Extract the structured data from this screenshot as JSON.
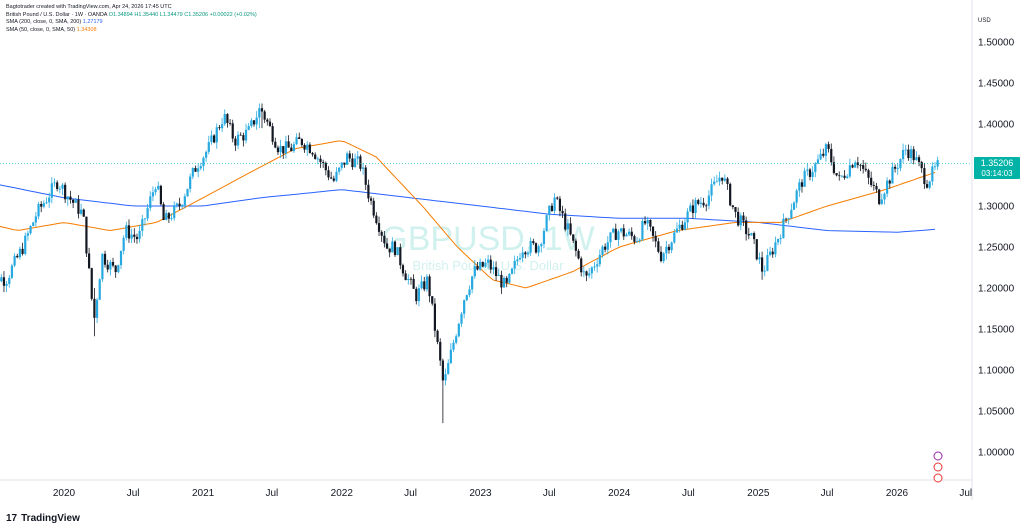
{
  "header": {
    "created_by": "Bagtotrader created with TradingView.com, Apr 24, 2026 17:45 UTC",
    "title": "British Pound / U.S. Dollar · 1W · OANDA",
    "ohlc": "O1.34894 H1.35440 L1.34479 C1.35206 +0.00022 (+0.02%)",
    "sma200_label": "SMA (200, close, 0, SMA, 200)",
    "sma200_value": "1.27179",
    "sma50_label": "SMA (50, close, 0, SMA, 50)",
    "sma50_value": "1.34308"
  },
  "watermark": {
    "symbol": "GBPUSD, 1W",
    "subtitle": "British Pound / U.S. Dollar"
  },
  "price_tag": {
    "price": "1.35206",
    "countdown": "03:14:03"
  },
  "brand": {
    "name": "TradingView"
  },
  "colors": {
    "up": "#26a9e0",
    "down": "#131722",
    "sma50": "#f57c00",
    "sma200": "#2962ff",
    "tag": "#00b3a6"
  },
  "chart_data": {
    "type": "candlestick",
    "y_unit": "USD",
    "ylim": [
      0.97,
      1.53
    ],
    "y_ticks": [
      "1.00000",
      "1.05000",
      "1.10000",
      "1.15000",
      "1.20000",
      "1.25000",
      "1.30000",
      "1.35000",
      "1.40000",
      "1.45000",
      "1.50000"
    ],
    "x_ticks": [
      "2020",
      "Jul",
      "2021",
      "Jul",
      "2022",
      "Jul",
      "2023",
      "Jul",
      "2024",
      "Jul",
      "2025",
      "Jul",
      "2026",
      "Jul"
    ],
    "x_tick_dates": [
      "2020-01-01",
      "2020-07-01",
      "2021-01-01",
      "2021-07-01",
      "2022-01-01",
      "2022-07-01",
      "2023-01-01",
      "2023-07-01",
      "2024-01-01",
      "2024-07-01",
      "2025-01-01",
      "2025-07-01",
      "2026-01-01",
      "2026-07-01"
    ],
    "close_path": [
      [
        "2019-06-01",
        1.22
      ],
      [
        "2019-08-01",
        1.21
      ],
      [
        "2019-09-15",
        1.25
      ],
      [
        "2019-10-20",
        1.29
      ],
      [
        "2019-12-15",
        1.33
      ],
      [
        "2020-01-15",
        1.31
      ],
      [
        "2020-02-20",
        1.29
      ],
      [
        "2020-03-20",
        1.16
      ],
      [
        "2020-04-10",
        1.24
      ],
      [
        "2020-05-15",
        1.22
      ],
      [
        "2020-06-10",
        1.27
      ],
      [
        "2020-07-15",
        1.26
      ],
      [
        "2020-08-30",
        1.33
      ],
      [
        "2020-09-20",
        1.28
      ],
      [
        "2020-10-30",
        1.3
      ],
      [
        "2020-12-15",
        1.35
      ],
      [
        "2021-01-15",
        1.37
      ],
      [
        "2021-02-24",
        1.41
      ],
      [
        "2021-03-25",
        1.38
      ],
      [
        "2021-04-30",
        1.39
      ],
      [
        "2021-06-01",
        1.42
      ],
      [
        "2021-07-20",
        1.37
      ],
      [
        "2021-08-20",
        1.37
      ],
      [
        "2021-09-15",
        1.38
      ],
      [
        "2021-10-15",
        1.37
      ],
      [
        "2021-12-10",
        1.33
      ],
      [
        "2022-01-15",
        1.36
      ],
      [
        "2022-02-20",
        1.35
      ],
      [
        "2022-03-15",
        1.31
      ],
      [
        "2022-04-30",
        1.25
      ],
      [
        "2022-05-20",
        1.25
      ],
      [
        "2022-06-15",
        1.22
      ],
      [
        "2022-07-15",
        1.19
      ],
      [
        "2022-08-15",
        1.21
      ],
      [
        "2022-09-26",
        1.08
      ],
      [
        "2022-10-20",
        1.13
      ],
      [
        "2022-11-20",
        1.19
      ],
      [
        "2022-12-15",
        1.22
      ],
      [
        "2023-01-20",
        1.23
      ],
      [
        "2023-03-10",
        1.2
      ],
      [
        "2023-04-20",
        1.25
      ],
      [
        "2023-06-01",
        1.25
      ],
      [
        "2023-07-14",
        1.31
      ],
      [
        "2023-08-20",
        1.27
      ],
      [
        "2023-10-05",
        1.21
      ],
      [
        "2023-11-20",
        1.25
      ],
      [
        "2023-12-28",
        1.27
      ],
      [
        "2024-02-15",
        1.26
      ],
      [
        "2024-03-10",
        1.28
      ],
      [
        "2024-04-20",
        1.24
      ],
      [
        "2024-06-01",
        1.27
      ],
      [
        "2024-07-15",
        1.3
      ],
      [
        "2024-08-20",
        1.31
      ],
      [
        "2024-09-27",
        1.34
      ],
      [
        "2024-11-01",
        1.29
      ],
      [
        "2024-12-15",
        1.26
      ],
      [
        "2025-01-13",
        1.22
      ],
      [
        "2025-02-20",
        1.26
      ],
      [
        "2025-03-20",
        1.29
      ],
      [
        "2025-04-25",
        1.33
      ],
      [
        "2025-06-01",
        1.35
      ],
      [
        "2025-07-01",
        1.37
      ],
      [
        "2025-08-01",
        1.33
      ],
      [
        "2025-09-15",
        1.36
      ],
      [
        "2025-10-20",
        1.33
      ],
      [
        "2025-11-15",
        1.31
      ],
      [
        "2025-12-20",
        1.34
      ],
      [
        "2026-01-25",
        1.37
      ],
      [
        "2026-02-15",
        1.36
      ],
      [
        "2026-03-20",
        1.33
      ],
      [
        "2026-04-24",
        1.352
      ]
    ],
    "sma50_path": [
      [
        "2019-06-01",
        1.28
      ],
      [
        "2019-09-01",
        1.27
      ],
      [
        "2020-01-01",
        1.28
      ],
      [
        "2020-05-01",
        1.27
      ],
      [
        "2020-09-01",
        1.28
      ],
      [
        "2021-01-01",
        1.31
      ],
      [
        "2021-05-01",
        1.34
      ],
      [
        "2021-09-01",
        1.37
      ],
      [
        "2022-01-01",
        1.38
      ],
      [
        "2022-04-01",
        1.36
      ],
      [
        "2022-08-01",
        1.3
      ],
      [
        "2022-11-01",
        1.25
      ],
      [
        "2023-02-01",
        1.21
      ],
      [
        "2023-05-01",
        1.2
      ],
      [
        "2023-09-01",
        1.22
      ],
      [
        "2024-01-01",
        1.25
      ],
      [
        "2024-06-01",
        1.27
      ],
      [
        "2024-11-01",
        1.28
      ],
      [
        "2025-03-01",
        1.28
      ],
      [
        "2025-07-01",
        1.3
      ],
      [
        "2025-12-01",
        1.32
      ],
      [
        "2026-04-24",
        1.343
      ]
    ],
    "sma200_path": [
      [
        "2019-06-01",
        1.33
      ],
      [
        "2020-01-01",
        1.31
      ],
      [
        "2020-07-01",
        1.3
      ],
      [
        "2021-01-01",
        1.3
      ],
      [
        "2021-06-01",
        1.31
      ],
      [
        "2022-01-01",
        1.32
      ],
      [
        "2022-07-01",
        1.31
      ],
      [
        "2023-01-01",
        1.3
      ],
      [
        "2023-07-01",
        1.29
      ],
      [
        "2024-01-01",
        1.285
      ],
      [
        "2024-07-01",
        1.285
      ],
      [
        "2025-01-01",
        1.28
      ],
      [
        "2025-07-01",
        1.27
      ],
      [
        "2026-01-01",
        1.268
      ],
      [
        "2026-04-24",
        1.272
      ]
    ],
    "extremes": [
      [
        "2020-03-20",
        1.1412,
        1.2
      ],
      [
        "2022-09-26",
        1.0352,
        1.1
      ],
      [
        "2021-06-01",
        1.395,
        1.425
      ],
      [
        "2025-01-13",
        1.21,
        1.23
      ]
    ]
  }
}
